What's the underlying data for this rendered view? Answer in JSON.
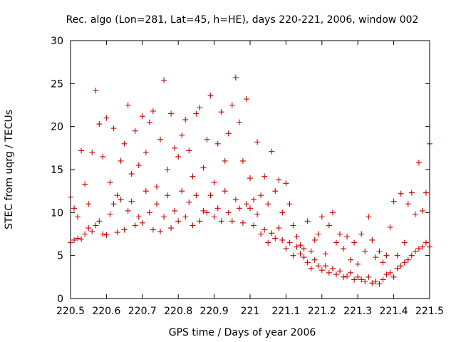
{
  "chart_data": {
    "type": "scatter",
    "title": "Rec. algo (Lon=281, Lat=45, h=HE), days 220-221, 2006, window 002",
    "xlabel": "GPS time / Days of year 2006",
    "ylabel": "STEC from uqrg / TECUs",
    "xlim": [
      220.5,
      221.5
    ],
    "ylim": [
      0,
      30
    ],
    "xticks": [
      220.5,
      220.6,
      220.7,
      220.8,
      220.9,
      221,
      221.1,
      221.2,
      221.3,
      221.4,
      221.5
    ],
    "xtick_labels": [
      "220.5",
      "220.6",
      "220.7",
      "220.8",
      "220.9",
      "221",
      "221.1",
      "221.2",
      "221.3",
      "221.4",
      "221.5"
    ],
    "yticks": [
      0,
      5,
      10,
      15,
      20,
      25,
      30
    ],
    "ytick_labels": [
      "0",
      "5",
      "10",
      "15",
      "20",
      "25",
      "30"
    ],
    "grid": false,
    "legend": "none",
    "marker": "+",
    "color": "#cc0000",
    "series": [
      {
        "points": [
          [
            220.5,
            6.5
          ],
          [
            220.5,
            11.8
          ],
          [
            220.51,
            6.8
          ],
          [
            220.51,
            10.5
          ],
          [
            220.52,
            7.0
          ],
          [
            220.52,
            9.5
          ],
          [
            220.53,
            6.9
          ],
          [
            220.53,
            17.2
          ],
          [
            220.54,
            7.5
          ],
          [
            220.54,
            13.3
          ],
          [
            220.55,
            8.2
          ],
          [
            220.55,
            11.0
          ],
          [
            220.56,
            7.8
          ],
          [
            220.56,
            17.0
          ],
          [
            220.57,
            8.5
          ],
          [
            220.57,
            24.2
          ],
          [
            220.58,
            9.0
          ],
          [
            220.58,
            20.3
          ],
          [
            220.59,
            7.5
          ],
          [
            220.59,
            16.5
          ],
          [
            220.6,
            7.4
          ],
          [
            220.6,
            21.0
          ],
          [
            220.61,
            9.8
          ],
          [
            220.61,
            13.5
          ],
          [
            220.62,
            11.0
          ],
          [
            220.62,
            19.8
          ],
          [
            220.63,
            7.7
          ],
          [
            220.63,
            12.0
          ],
          [
            220.64,
            11.5
          ],
          [
            220.64,
            16.0
          ],
          [
            220.65,
            8.0
          ],
          [
            220.65,
            18.0
          ],
          [
            220.66,
            10.2
          ],
          [
            220.66,
            22.5
          ],
          [
            220.67,
            11.3
          ],
          [
            220.67,
            14.5
          ],
          [
            220.68,
            8.5
          ],
          [
            220.68,
            19.5
          ],
          [
            220.69,
            9.5
          ],
          [
            220.69,
            15.5
          ],
          [
            220.7,
            8.8
          ],
          [
            220.7,
            21.2
          ],
          [
            220.71,
            12.5
          ],
          [
            220.71,
            17.0
          ],
          [
            220.72,
            10.0
          ],
          [
            220.72,
            20.5
          ],
          [
            220.73,
            8.0
          ],
          [
            220.73,
            21.8
          ],
          [
            220.74,
            13.0
          ],
          [
            220.74,
            11.0
          ],
          [
            220.75,
            7.8
          ],
          [
            220.75,
            18.5
          ],
          [
            220.76,
            9.5
          ],
          [
            220.76,
            25.4
          ],
          [
            220.77,
            12.0
          ],
          [
            220.77,
            15.0
          ],
          [
            220.78,
            8.2
          ],
          [
            220.78,
            21.5
          ],
          [
            220.79,
            10.2
          ],
          [
            220.79,
            17.5
          ],
          [
            220.8,
            9.0
          ],
          [
            220.8,
            16.5
          ],
          [
            220.81,
            12.5
          ],
          [
            220.81,
            19.0
          ],
          [
            220.82,
            9.5
          ],
          [
            220.82,
            20.8
          ],
          [
            220.83,
            11.2
          ],
          [
            220.83,
            17.2
          ],
          [
            220.84,
            8.5
          ],
          [
            220.84,
            14.2
          ],
          [
            220.85,
            12.0
          ],
          [
            220.85,
            21.5
          ],
          [
            220.86,
            9.0
          ],
          [
            220.86,
            22.2
          ],
          [
            220.87,
            10.2
          ],
          [
            220.87,
            15.2
          ],
          [
            220.88,
            10.0
          ],
          [
            220.88,
            18.5
          ],
          [
            220.89,
            12.0
          ],
          [
            220.89,
            23.6
          ],
          [
            220.9,
            9.5
          ],
          [
            220.9,
            13.5
          ],
          [
            220.91,
            10.5
          ],
          [
            220.91,
            18.0
          ],
          [
            220.92,
            9.0
          ],
          [
            220.92,
            21.7
          ],
          [
            220.93,
            12.5
          ],
          [
            220.93,
            16.0
          ],
          [
            220.94,
            10.0
          ],
          [
            220.94,
            19.2
          ],
          [
            220.95,
            9.0
          ],
          [
            220.95,
            22.5
          ],
          [
            220.96,
            11.5
          ],
          [
            220.96,
            25.7
          ],
          [
            220.97,
            10.5
          ],
          [
            220.97,
            20.5
          ],
          [
            220.98,
            8.8
          ],
          [
            220.98,
            16.0
          ],
          [
            220.99,
            11.0
          ],
          [
            220.99,
            23.2
          ],
          [
            221.0,
            10.5
          ],
          [
            221.0,
            14.0
          ],
          [
            221.01,
            8.5
          ],
          [
            221.01,
            11.5
          ],
          [
            221.02,
            9.8
          ],
          [
            221.02,
            18.2
          ],
          [
            221.03,
            7.5
          ],
          [
            221.03,
            12.0
          ],
          [
            221.04,
            8.0
          ],
          [
            221.04,
            14.2
          ],
          [
            221.05,
            6.5
          ],
          [
            221.05,
            11.0
          ],
          [
            221.06,
            7.6
          ],
          [
            221.06,
            17.1
          ],
          [
            221.07,
            7.0
          ],
          [
            221.07,
            12.5
          ],
          [
            221.08,
            8.2
          ],
          [
            221.08,
            13.8
          ],
          [
            221.09,
            6.8
          ],
          [
            221.09,
            10.0
          ],
          [
            221.1,
            5.8
          ],
          [
            221.1,
            13.4
          ],
          [
            221.11,
            6.5
          ],
          [
            221.11,
            11.0
          ],
          [
            221.12,
            5.0
          ],
          [
            221.12,
            8.5
          ],
          [
            221.13,
            6.0
          ],
          [
            221.13,
            7.2
          ],
          [
            221.14,
            5.2
          ],
          [
            221.14,
            6.2
          ],
          [
            221.15,
            4.8
          ],
          [
            221.15,
            5.8
          ],
          [
            221.16,
            4.2
          ],
          [
            221.16,
            9.0
          ],
          [
            221.17,
            3.5
          ],
          [
            221.17,
            5.5
          ],
          [
            221.18,
            4.5
          ],
          [
            221.18,
            6.8
          ],
          [
            221.19,
            3.8
          ],
          [
            221.19,
            7.5
          ],
          [
            221.2,
            3.3
          ],
          [
            221.2,
            9.5
          ],
          [
            221.21,
            3.8
          ],
          [
            221.21,
            5.2
          ],
          [
            221.22,
            3.0
          ],
          [
            221.22,
            8.5
          ],
          [
            221.23,
            3.5
          ],
          [
            221.23,
            10.0
          ],
          [
            221.24,
            2.8
          ],
          [
            221.24,
            6.5
          ],
          [
            221.25,
            3.2
          ],
          [
            221.25,
            7.5
          ],
          [
            221.26,
            2.5
          ],
          [
            221.26,
            5.8
          ],
          [
            221.27,
            2.6
          ],
          [
            221.27,
            7.2
          ],
          [
            221.28,
            3.0
          ],
          [
            221.28,
            4.5
          ],
          [
            221.29,
            2.2
          ],
          [
            221.29,
            6.5
          ],
          [
            221.3,
            2.5
          ],
          [
            221.3,
            4.0
          ],
          [
            221.31,
            2.2
          ],
          [
            221.31,
            7.5
          ],
          [
            221.32,
            2.0
          ],
          [
            221.32,
            5.5
          ],
          [
            221.33,
            2.5
          ],
          [
            221.33,
            9.5
          ],
          [
            221.34,
            1.8
          ],
          [
            221.34,
            6.8
          ],
          [
            221.35,
            2.0
          ],
          [
            221.35,
            4.8
          ],
          [
            221.36,
            1.7
          ],
          [
            221.36,
            5.5
          ],
          [
            221.37,
            2.2
          ],
          [
            221.37,
            4.2
          ],
          [
            221.38,
            2.8
          ],
          [
            221.38,
            5.0
          ],
          [
            221.39,
            3.0
          ],
          [
            221.39,
            8.3
          ],
          [
            221.4,
            2.5
          ],
          [
            221.4,
            11.3
          ],
          [
            221.41,
            3.5
          ],
          [
            221.41,
            5.0
          ],
          [
            221.42,
            3.8
          ],
          [
            221.42,
            12.2
          ],
          [
            221.43,
            4.2
          ],
          [
            221.43,
            6.5
          ],
          [
            221.44,
            4.5
          ],
          [
            221.44,
            11.0
          ],
          [
            221.45,
            5.0
          ],
          [
            221.45,
            12.3
          ],
          [
            221.46,
            5.5
          ],
          [
            221.46,
            9.8
          ],
          [
            221.47,
            5.8
          ],
          [
            221.47,
            15.8
          ],
          [
            221.48,
            6.0
          ],
          [
            221.48,
            10.2
          ],
          [
            221.49,
            6.5
          ],
          [
            221.49,
            12.3
          ],
          [
            221.5,
            6.0
          ],
          [
            221.5,
            18.0
          ]
        ]
      }
    ]
  }
}
